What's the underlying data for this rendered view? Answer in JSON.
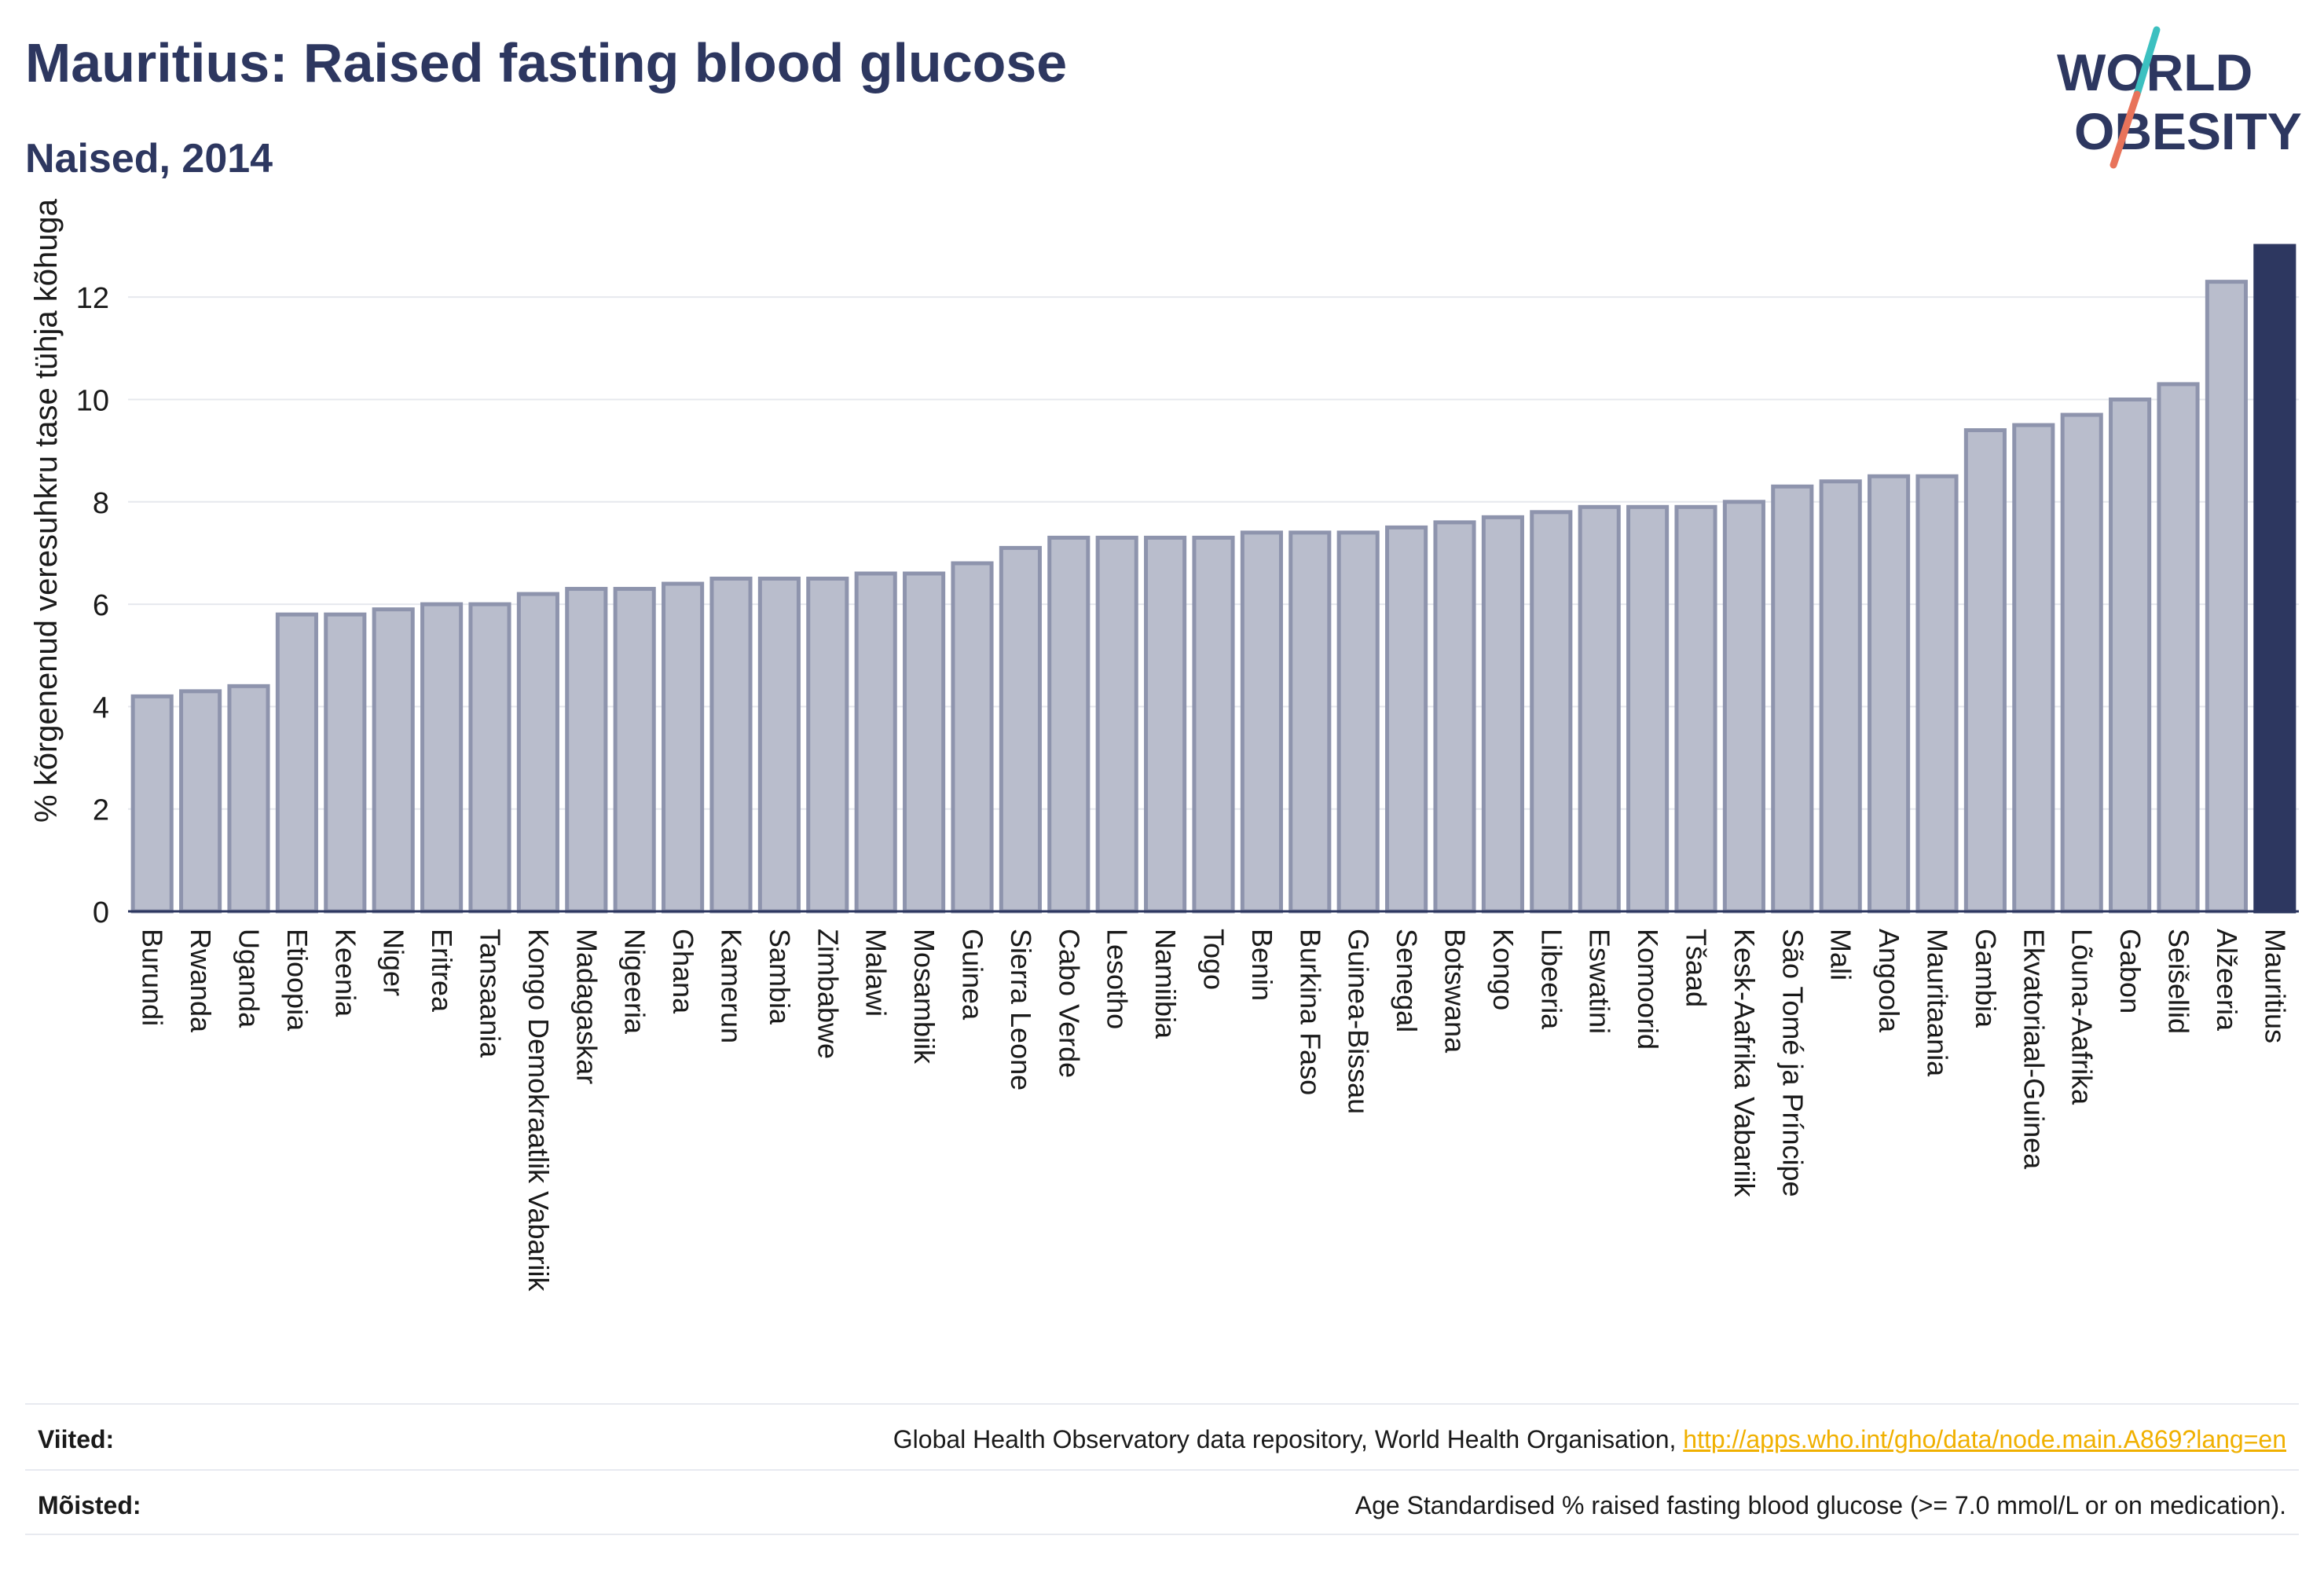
{
  "header": {
    "title": "Mauritius: Raised fasting blood glucose",
    "subtitle": "Naised, 2014"
  },
  "logo": {
    "line1": "WORLD",
    "line2": "OBESITY",
    "accent_colors": [
      "#3cc0c0",
      "#e8735a"
    ]
  },
  "colors": {
    "bar": "#b9bdcc",
    "bar_stroke": "#8e94ad",
    "highlight": "#2d3760",
    "grid": "#e6e8ee",
    "axis": "#2d3760"
  },
  "chart_data": {
    "type": "bar",
    "title": "Mauritius: Raised fasting blood glucose",
    "subtitle": "Naised, 2014",
    "ylabel": "% kõrgenenud veresuhkru tase tühja kõhuga",
    "xlabel": "",
    "ylim": [
      0,
      13.2
    ],
    "yticks": [
      0,
      2,
      4,
      6,
      8,
      10,
      12
    ],
    "grid": true,
    "highlight": "Mauritius",
    "categories": [
      "Burundi",
      "Rwanda",
      "Uganda",
      "Etioopia",
      "Keenia",
      "Niger",
      "Eritrea",
      "Tansaania",
      "Kongo Demokraatlik Vabariik",
      "Madagaskar",
      "Nigeeria",
      "Ghana",
      "Kamerun",
      "Sambia",
      "Zimbabwe",
      "Malawi",
      "Mosambiik",
      "Guinea",
      "Sierra Leone",
      "Cabo Verde",
      "Lesotho",
      "Namiibia",
      "Togo",
      "Benin",
      "Burkina Faso",
      "Guinea-Bissau",
      "Senegal",
      "Botswana",
      "Kongo",
      "Libeeria",
      "Eswatini",
      "Komoorid",
      "Tšaad",
      "Kesk-Aafrika Vabariik",
      "São Tomé ja Príncipe",
      "Mali",
      "Angoola",
      "Mauritaania",
      "Gambia",
      "Ekvatoriaal-Guinea",
      "Lõuna-Aafrika",
      "Gabon",
      "Seišellid",
      "Alžeeria",
      "Mauritius"
    ],
    "values": [
      4.2,
      4.3,
      4.4,
      5.8,
      5.8,
      5.9,
      6.0,
      6.0,
      6.2,
      6.3,
      6.3,
      6.4,
      6.5,
      6.5,
      6.5,
      6.6,
      6.6,
      6.8,
      7.1,
      7.3,
      7.3,
      7.3,
      7.3,
      7.4,
      7.4,
      7.4,
      7.5,
      7.6,
      7.7,
      7.8,
      7.9,
      7.9,
      7.9,
      8.0,
      8.3,
      8.4,
      8.5,
      8.5,
      9.4,
      9.5,
      9.7,
      10.0,
      10.3,
      12.3,
      13.0
    ]
  },
  "footer": {
    "sources_label": "Viited:",
    "sources_text": "Global Health Observatory data repository, World Health Organisation, ",
    "sources_link": "http://apps.who.int/gho/data/node.main.A869?lang=en",
    "definitions_label": "Mõisted:",
    "definitions_text": "Age Standardised % raised fasting blood glucose (>= 7.0 mmol/L or on medication)."
  }
}
